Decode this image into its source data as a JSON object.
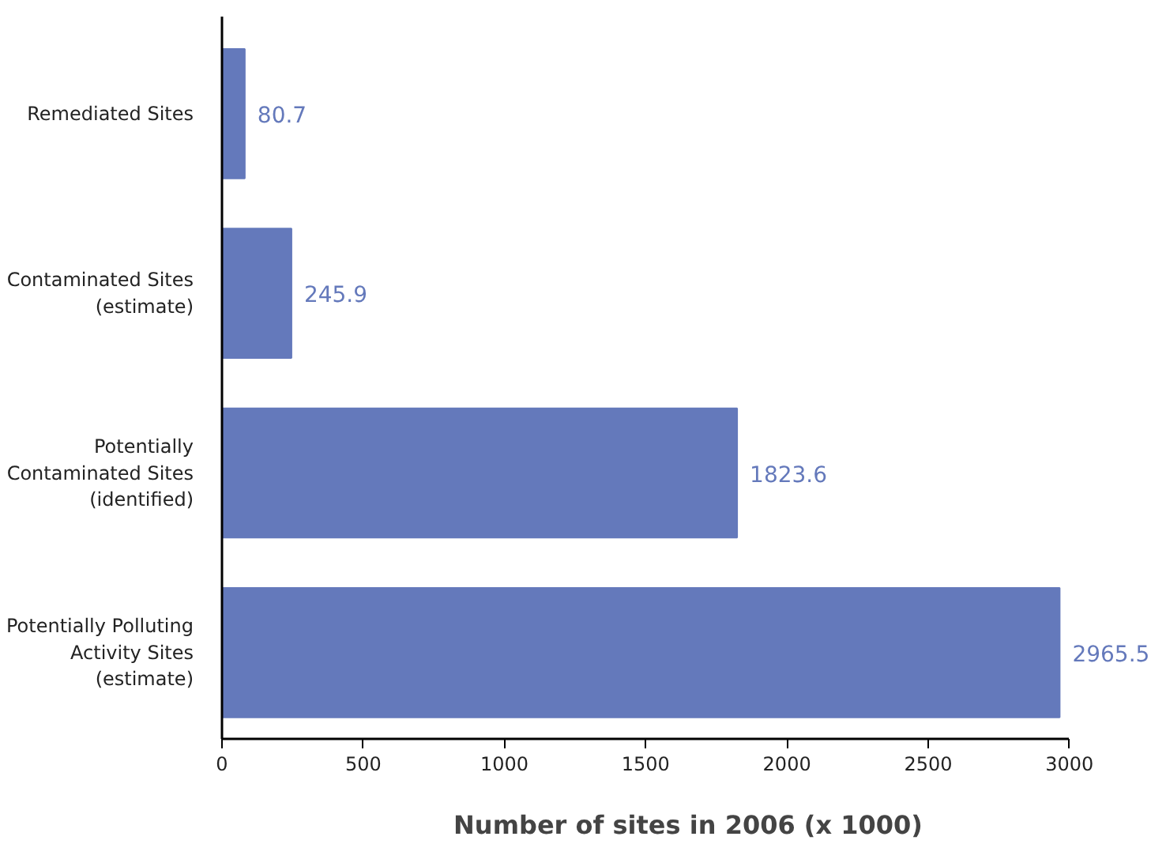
{
  "chart_data": {
    "type": "bar",
    "orientation": "horizontal",
    "xlabel": "Number of sites in 2006 (x 1000)",
    "categories": [
      "Remediated Sites",
      "Contaminated Sites\n(estimate)",
      "Potentially\nContaminated Sites\n(identified)",
      "Potentially Polluting\nActivity Sites\n(estimate)"
    ],
    "values": [
      80.7,
      245.9,
      1823.6,
      2965.5
    ],
    "color": "#6479bb",
    "data_labels": true,
    "xlim": [
      0,
      3000
    ],
    "xticks": [
      0,
      500,
      1000,
      1500,
      2000,
      2500,
      3000
    ],
    "grid": false
  }
}
